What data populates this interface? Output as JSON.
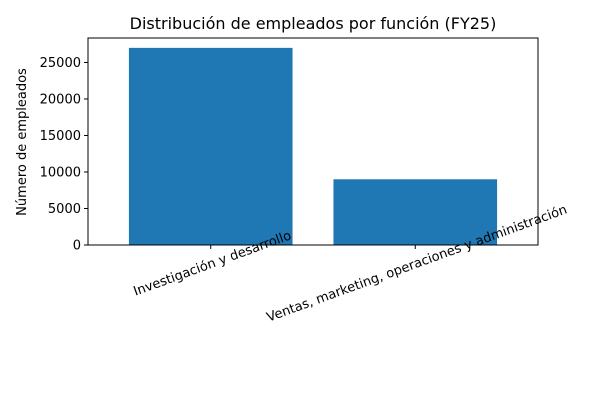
{
  "chart_data": {
    "type": "bar",
    "title": "Distribución de empleados por función (FY25)",
    "xlabel": "",
    "ylabel": "Número de empleados",
    "categories": [
      "Investigación y desarrollo",
      "Ventas, marketing, operaciones y administración"
    ],
    "values": [
      27000,
      9000
    ],
    "ylim": [
      0,
      28350
    ],
    "yticks": [
      0,
      5000,
      10000,
      15000,
      20000,
      25000
    ],
    "grid": false,
    "legend": "none",
    "bar_color": "#1f77b4"
  }
}
